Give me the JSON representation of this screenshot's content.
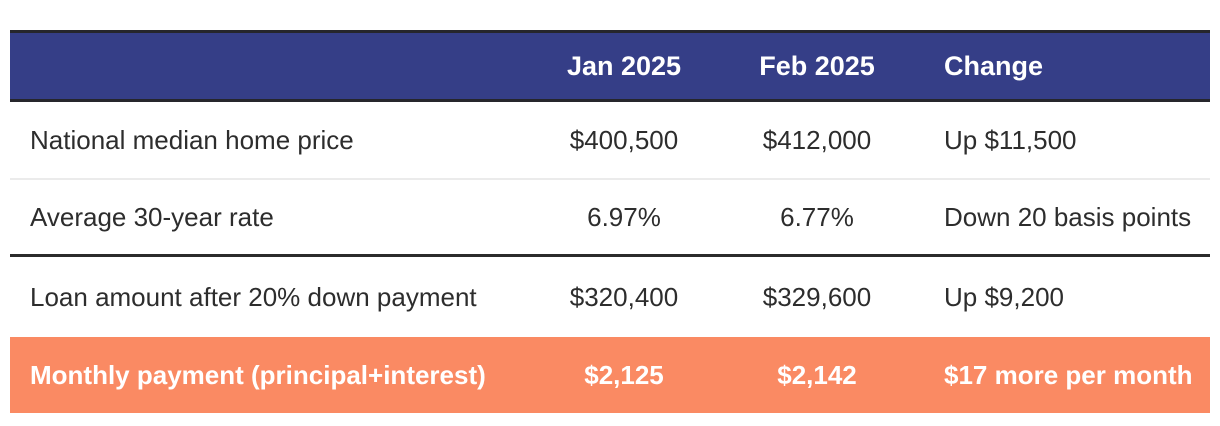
{
  "chart_data": {
    "type": "table",
    "columns": [
      "",
      "Jan 2025",
      "Feb 2025",
      "Change"
    ],
    "rows": [
      {
        "label": "National median home price",
        "values": [
          "$400,500",
          "$412,000",
          "Up $11,500"
        ],
        "highlight": false
      },
      {
        "label": "Average 30-year rate",
        "values": [
          "6.97%",
          "6.77%",
          "Down 20 basis points"
        ],
        "highlight": false
      },
      {
        "label": "Loan amount after 20% down payment",
        "values": [
          "$320,400",
          "$329,600",
          "Up $9,200"
        ],
        "highlight": false
      },
      {
        "label": "Monthly payment (principal+interest)",
        "values": [
          "$2,125",
          "$2,142",
          "$17 more per month"
        ],
        "highlight": true
      }
    ],
    "layout": {
      "alignment": {
        "label_column": "left",
        "jan_column": "center",
        "feb_column": "center",
        "change_column": "left"
      }
    },
    "colors": {
      "header_bg": "#353e87",
      "header_text": "#ffffff",
      "highlight_bg": "#fa8a63",
      "highlight_text": "#ffffff",
      "body_text": "#2d2d2d",
      "dark_border": "#2b2b2b",
      "light_separator": "#ebebeb",
      "page_bg": "#ffffff"
    }
  }
}
